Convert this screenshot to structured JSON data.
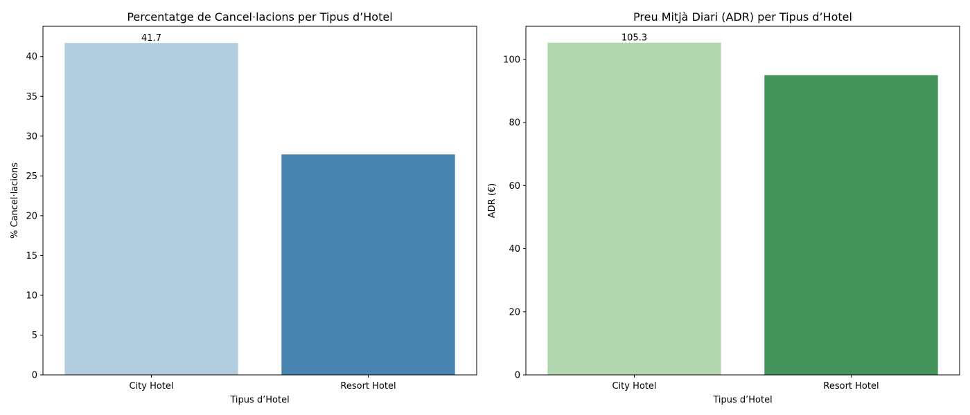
{
  "chart_data": [
    {
      "type": "bar",
      "title": "Percentatge de Cancel·lacions per Tipus d’Hotel",
      "xlabel": "Tipus d’Hotel",
      "ylabel": "% Cancel·lacions",
      "categories": [
        "City Hotel",
        "Resort Hotel"
      ],
      "values": [
        41.7,
        27.7
      ],
      "colors": [
        "#b3cde0",
        "#4884b0"
      ],
      "data_labels": [
        "41.7",
        ""
      ],
      "ylim": [
        0,
        43.8
      ],
      "yticks": [
        0,
        5,
        10,
        15,
        20,
        25,
        30,
        35,
        40
      ],
      "grid": false,
      "legend": "none"
    },
    {
      "type": "bar",
      "title": "Preu Mitjà Diari (ADR) per Tipus d’Hotel",
      "xlabel": "Tipus d’Hotel",
      "ylabel": "ADR (€)",
      "categories": [
        "City Hotel",
        "Resort Hotel"
      ],
      "values": [
        105.3,
        95.0
      ],
      "colors": [
        "#b3d7b0",
        "#44935a"
      ],
      "data_labels": [
        "105.3",
        ""
      ],
      "ylim": [
        0,
        110.5
      ],
      "yticks": [
        0,
        20,
        40,
        60,
        80,
        100
      ],
      "grid": false,
      "legend": "none"
    }
  ]
}
